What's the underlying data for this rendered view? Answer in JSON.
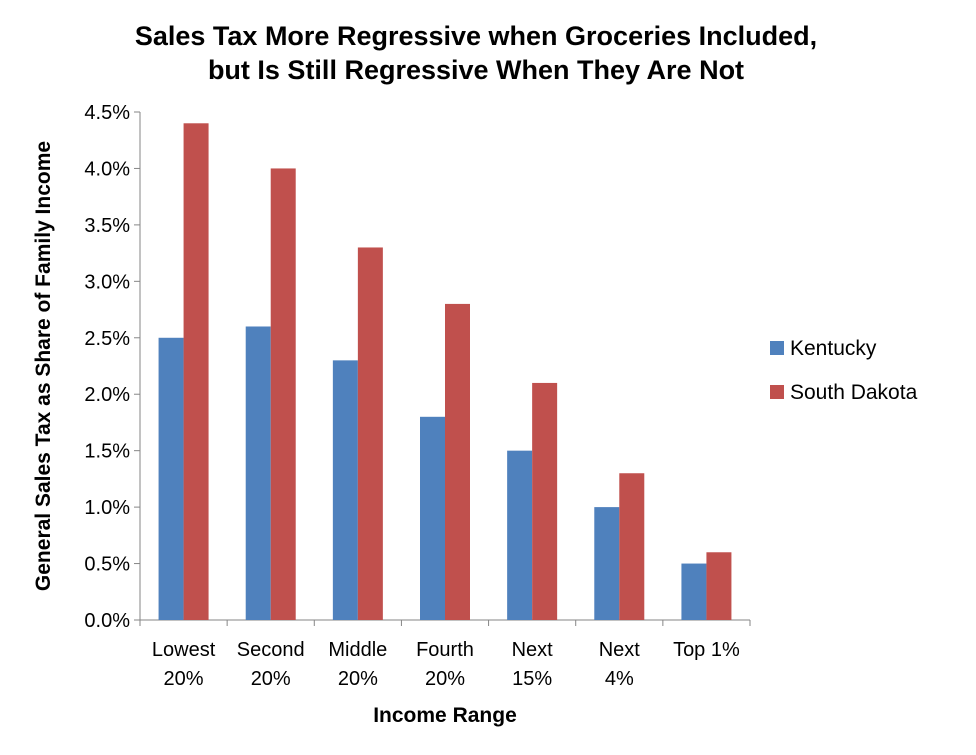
{
  "chart_data": {
    "type": "bar",
    "title_lines": [
      "Sales Tax More Regressive when Groceries Included,",
      "but Is Still Regressive When They Are Not"
    ],
    "xlabel": "Income Range",
    "ylabel": "General Sales Tax as Share of Family Income",
    "categories": [
      [
        "Lowest",
        "20%"
      ],
      [
        "Second",
        "20%"
      ],
      [
        "Middle",
        "20%"
      ],
      [
        "Fourth",
        "20%"
      ],
      [
        "Next",
        "15%"
      ],
      [
        "Next",
        "4%"
      ],
      [
        "Top 1%"
      ]
    ],
    "y_ticks": [
      "0.0%",
      "0.5%",
      "1.0%",
      "1.5%",
      "2.0%",
      "2.5%",
      "3.0%",
      "3.5%",
      "4.0%",
      "4.5%"
    ],
    "ylim": [
      0,
      4.5
    ],
    "grid": false,
    "legend_position": "right",
    "series": [
      {
        "name": "Kentucky",
        "color": "#4F81BD",
        "values": [
          2.5,
          2.6,
          2.3,
          1.8,
          1.5,
          1.0,
          0.5
        ]
      },
      {
        "name": "South Dakota",
        "color": "#C0504D",
        "values": [
          4.4,
          4.0,
          3.3,
          2.8,
          2.1,
          1.3,
          0.6
        ]
      }
    ]
  }
}
